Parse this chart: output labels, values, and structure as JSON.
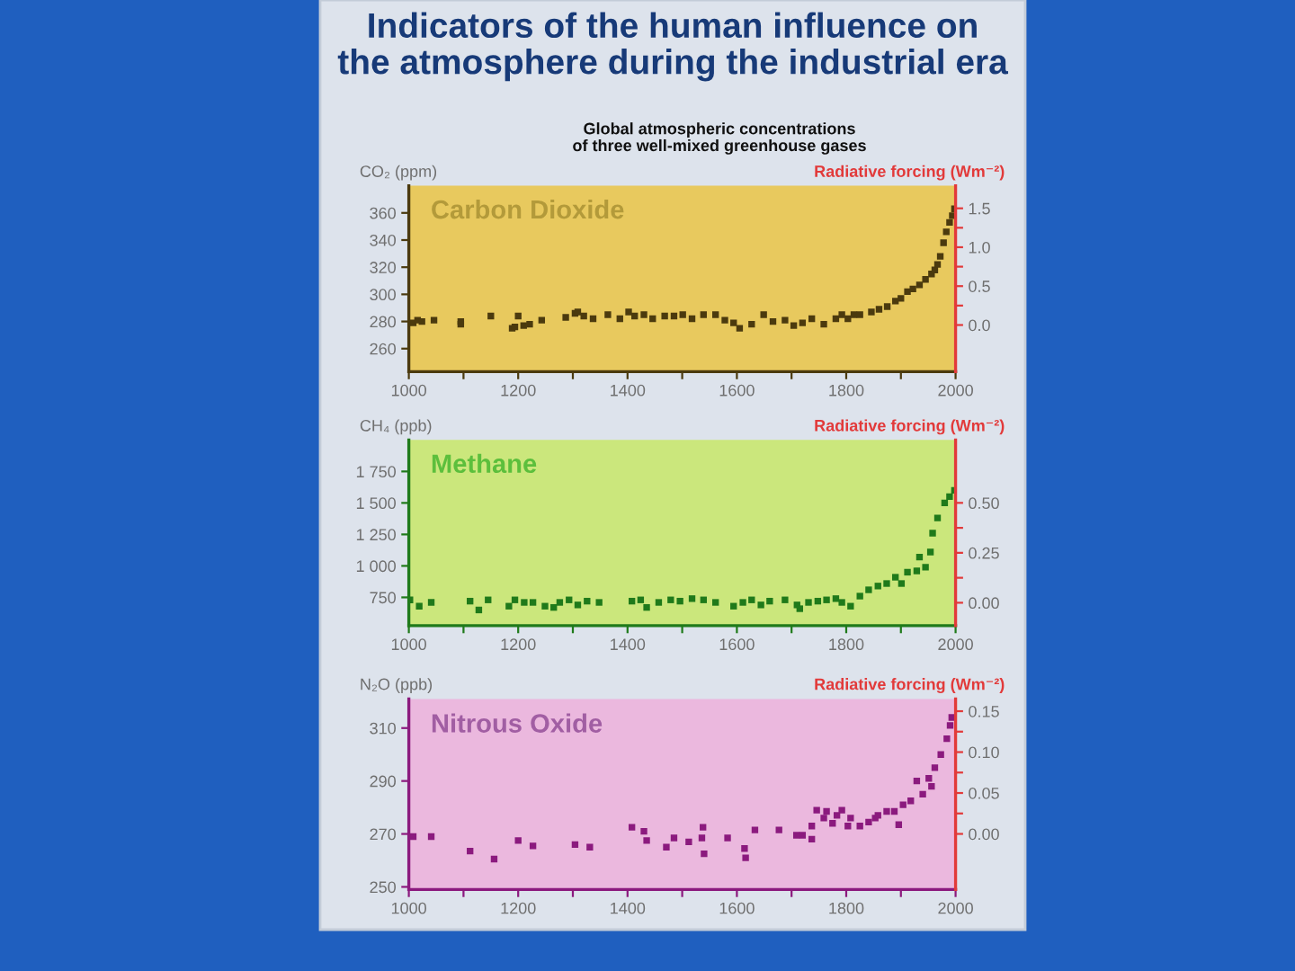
{
  "chart_data": [
    {
      "type": "scatter",
      "title": "Indicators of the human influence on\nthe atmosphere during the industrial era",
      "subtitle": "Global atmospheric concentrations\nof three well-mixed greenhouse gases",
      "ylabel": "CO₂ (ppm)",
      "y2label": "Radiative forcing (Wm⁻²)",
      "annotations": [
        "Carbon Dioxide"
      ],
      "marker": "square",
      "xlim": [
        1000,
        2000
      ],
      "xticks": [
        1000,
        {
          "value": 1100,
          "label": null
        },
        1200,
        {
          "value": 1300,
          "label": null
        },
        1400,
        {
          "value": 1500,
          "label": null
        },
        1600,
        {
          "value": 1700,
          "label": null
        },
        1800,
        {
          "value": 1900,
          "label": null
        },
        2000
      ],
      "ylim": [
        243,
        380
      ],
      "yticks": [
        260,
        280,
        300,
        320,
        340,
        360
      ],
      "y2lim": [
        -0.6,
        1.79
      ],
      "y2ticks": [
        {
          "value": 0,
          "label": "0.0"
        },
        {
          "value": 0.25,
          "label": null
        },
        {
          "value": 0.5,
          "label": "0.5"
        },
        {
          "value": 0.75,
          "label": null
        },
        {
          "value": 1,
          "label": "1.0"
        },
        {
          "value": 1.25,
          "label": null
        },
        {
          "value": 1.5,
          "label": "1.5"
        }
      ],
      "series": [
        {
          "color": "#4b3a0e",
          "x": [
            1008,
            1016,
            1024,
            1046,
            1095,
            1095,
            1150,
            1189,
            1194,
            1200,
            1210,
            1221,
            1243,
            1287,
            1304,
            1309,
            1320,
            1337,
            1364,
            1386,
            1402,
            1413,
            1430,
            1446,
            1468,
            1485,
            1501,
            1518,
            1539,
            1561,
            1578,
            1594,
            1605,
            1627,
            1649,
            1666,
            1688,
            1704,
            1720,
            1737,
            1759,
            1781,
            1792,
            1803,
            1814,
            1825,
            1846,
            1860,
            1875,
            1890,
            1900,
            1912,
            1922,
            1934,
            1945,
            1956,
            1962,
            1967,
            1972,
            1978,
            1983,
            1989,
            1994,
            1998
          ],
          "values": [
            279,
            281,
            280,
            281,
            280,
            278,
            284,
            275,
            276,
            284,
            277,
            278,
            281,
            283,
            286,
            287,
            284,
            282,
            285,
            282,
            287,
            284,
            285,
            282,
            284,
            284,
            285,
            282,
            285,
            285,
            281,
            279,
            275,
            278,
            285,
            280,
            281,
            277,
            279,
            282,
            278,
            282,
            285,
            282,
            285,
            285,
            287,
            289,
            291,
            295,
            297,
            302,
            304,
            307,
            311,
            315,
            318,
            322,
            328,
            338,
            346,
            353,
            358,
            363
          ]
        }
      ]
    },
    {
      "type": "scatter",
      "ylabel": "CH₄ (ppb)",
      "y2label": "Radiative forcing (Wm⁻²)",
      "annotations": [
        "Methane"
      ],
      "marker": "square",
      "xlim": [
        1000,
        2000
      ],
      "xticks": [
        1000,
        {
          "value": 1100,
          "label": null
        },
        1200,
        {
          "value": 1300,
          "label": null
        },
        1400,
        {
          "value": 1500,
          "label": null
        },
        1600,
        {
          "value": 1700,
          "label": null
        },
        1800,
        {
          "value": 1900,
          "label": null
        },
        2000
      ],
      "ylim": [
        525,
        2000
      ],
      "yticks": [
        750,
        {
          "value": 1000,
          "label": "1 000"
        },
        {
          "value": 1250,
          "label": "1 250"
        },
        {
          "value": 1500,
          "label": "1 500"
        },
        {
          "value": 1750,
          "label": "1 750"
        }
      ],
      "y2lim": [
        -0.115,
        0.815
      ],
      "y2ticks": [
        {
          "value": 0,
          "label": "0.00"
        },
        {
          "value": 0.125,
          "label": null
        },
        {
          "value": 0.25,
          "label": "0.25"
        },
        {
          "value": 0.375,
          "label": null
        },
        {
          "value": 0.5,
          "label": "0.50"
        }
      ],
      "series": [
        {
          "color": "#1f7a1a",
          "x": [
            1002,
            1019,
            1041,
            1112,
            1128,
            1145,
            1183,
            1194,
            1211,
            1227,
            1249,
            1265,
            1276,
            1293,
            1309,
            1326,
            1348,
            1408,
            1424,
            1435,
            1457,
            1479,
            1496,
            1518,
            1539,
            1561,
            1594,
            1611,
            1627,
            1644,
            1660,
            1688,
            1710,
            1715,
            1731,
            1748,
            1764,
            1781,
            1792,
            1808,
            1825,
            1841,
            1858,
            1874,
            1890,
            1901,
            1912,
            1929,
            1934,
            1945,
            1954,
            1958,
            1967,
            1980,
            1989,
            1998
          ],
          "values": [
            730,
            680,
            710,
            720,
            650,
            730,
            680,
            730,
            710,
            710,
            680,
            670,
            710,
            730,
            690,
            720,
            710,
            720,
            730,
            670,
            710,
            730,
            720,
            740,
            730,
            710,
            680,
            710,
            730,
            690,
            720,
            730,
            690,
            660,
            710,
            720,
            730,
            740,
            710,
            680,
            760,
            810,
            840,
            860,
            910,
            860,
            950,
            960,
            1070,
            990,
            1110,
            1260,
            1380,
            1500,
            1550,
            1600
          ]
        }
      ]
    },
    {
      "type": "scatter",
      "ylabel": "N₂O (ppb)",
      "y2label": "Radiative forcing (Wm⁻²)",
      "annotations": [
        "Nitrous Oxide"
      ],
      "marker": "square",
      "xlim": [
        1000,
        2000
      ],
      "xticks": [
        1000,
        {
          "value": 1100,
          "label": null
        },
        1200,
        {
          "value": 1300,
          "label": null
        },
        1400,
        {
          "value": 1500,
          "label": null
        },
        1600,
        {
          "value": 1700,
          "label": null
        },
        1800,
        {
          "value": 1900,
          "label": null
        },
        2000
      ],
      "ylim": [
        249,
        321
      ],
      "yticks": [
        250,
        270,
        290,
        310
      ],
      "y2lim": [
        -0.068,
        0.165
      ],
      "y2ticks": [
        {
          "value": 0,
          "label": "0.00"
        },
        {
          "value": 0.025,
          "label": null
        },
        {
          "value": 0.05,
          "label": "0.05"
        },
        {
          "value": 0.075,
          "label": null
        },
        {
          "value": 0.1,
          "label": "0.10"
        },
        {
          "value": 0.125,
          "label": null
        },
        {
          "value": 0.15,
          "label": "0.15"
        }
      ],
      "series": [
        {
          "color": "#8b1a7e",
          "x": [
            1008,
            1041,
            1112,
            1156,
            1200,
            1227,
            1304,
            1331,
            1408,
            1430,
            1435,
            1471,
            1485,
            1512,
            1536,
            1538,
            1540,
            1583,
            1614,
            1616,
            1633,
            1677,
            1709,
            1720,
            1737,
            1737,
            1746,
            1759,
            1764,
            1775,
            1783,
            1792,
            1803,
            1808,
            1825,
            1841,
            1853,
            1858,
            1874,
            1888,
            1896,
            1904,
            1918,
            1929,
            1940,
            1951,
            1956,
            1962,
            1973,
            1984,
            1990,
            1993
          ],
          "values": [
            269,
            269,
            263.5,
            260.5,
            267.5,
            265.5,
            266,
            265,
            272.5,
            271,
            267.5,
            265,
            268.5,
            267,
            268.5,
            272.5,
            262.5,
            268.5,
            264.5,
            261,
            271.5,
            271.5,
            269.5,
            269.5,
            273,
            268,
            279,
            276,
            278.5,
            274,
            277,
            279,
            273,
            276,
            273,
            274.5,
            276,
            277,
            278.5,
            278.5,
            273.5,
            281,
            282.5,
            290,
            285,
            291,
            288,
            295,
            300,
            306,
            311,
            314
          ]
        }
      ]
    }
  ]
}
